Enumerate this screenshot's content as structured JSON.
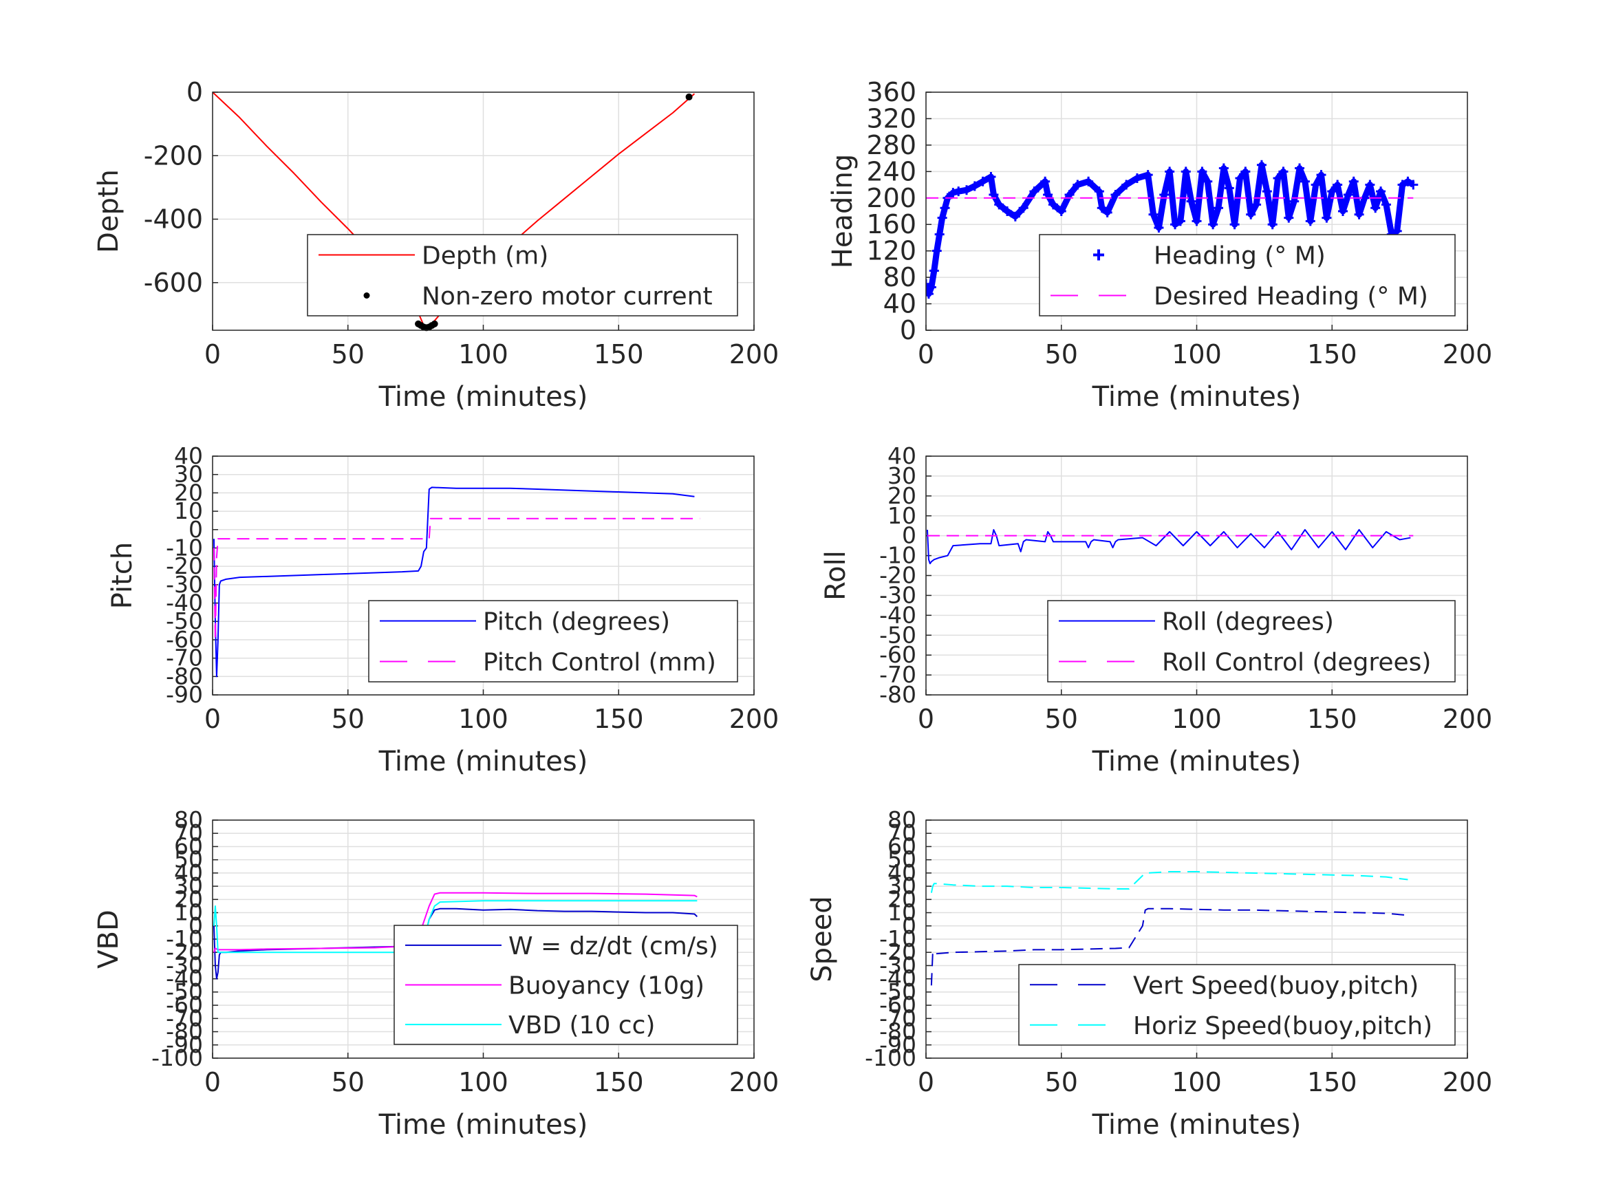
{
  "chart_data": [
    {
      "id": "depth",
      "type": "line",
      "xlabel": "Time (minutes)",
      "ylabel": "Depth",
      "xlim": [
        0,
        200
      ],
      "ylim": [
        -750,
        0
      ],
      "xticks": [
        "0",
        "50",
        "100",
        "150",
        "200"
      ],
      "yticks": [
        "0",
        "-200",
        "-400",
        "-600"
      ],
      "grid": true,
      "legend_position": "bottom-right",
      "series": [
        {
          "name": "Depth (m)",
          "color": "#ff0000",
          "style": "solid",
          "x": [
            0,
            10,
            20,
            30,
            40,
            50,
            60,
            70,
            75,
            78,
            80,
            85,
            90,
            100,
            110,
            120,
            130,
            140,
            150,
            160,
            170,
            176,
            178
          ],
          "y": [
            0,
            -80,
            -170,
            -255,
            -345,
            -430,
            -520,
            -615,
            -675,
            -735,
            -740,
            -690,
            -635,
            -555,
            -480,
            -405,
            -335,
            -265,
            -195,
            -130,
            -65,
            -20,
            -5
          ]
        },
        {
          "name": "Non-zero motor current",
          "color": "#000000",
          "style": "dots",
          "x": [
            76,
            77,
            78,
            79,
            80,
            81,
            82,
            176
          ],
          "y": [
            -730,
            -735,
            -740,
            -742,
            -740,
            -735,
            -730,
            -15
          ]
        }
      ]
    },
    {
      "id": "heading",
      "type": "line",
      "xlabel": "Time (minutes)",
      "ylabel": "Heading",
      "xlim": [
        0,
        200
      ],
      "ylim": [
        0,
        360
      ],
      "xticks": [
        "0",
        "50",
        "100",
        "150",
        "200"
      ],
      "yticks": [
        "0",
        "40",
        "80",
        "120",
        "160",
        "200",
        "240",
        "280",
        "320",
        "360"
      ],
      "grid": true,
      "legend_position": "bottom-right",
      "series": [
        {
          "name": "Heading (° M)",
          "color": "#0000ff",
          "style": "plus",
          "x": [
            0,
            1,
            2,
            3,
            4,
            5,
            6,
            7,
            8,
            10,
            12,
            15,
            18,
            21,
            24,
            25,
            27,
            30,
            33,
            36,
            40,
            44,
            45,
            47,
            50,
            53,
            56,
            60,
            64,
            65,
            67,
            70,
            74,
            78,
            82,
            84,
            86,
            88,
            90,
            92,
            94,
            96,
            98,
            100,
            102,
            104,
            106,
            108,
            110,
            112,
            114,
            116,
            118,
            120,
            122,
            124,
            126,
            128,
            130,
            132,
            134,
            136,
            138,
            140,
            142,
            144,
            146,
            148,
            150,
            152,
            154,
            156,
            158,
            160,
            162,
            164,
            166,
            168,
            170,
            172,
            174,
            176,
            178,
            180
          ],
          "y": [
            70,
            55,
            65,
            90,
            120,
            145,
            170,
            185,
            200,
            208,
            210,
            212,
            218,
            225,
            232,
            205,
            190,
            180,
            172,
            185,
            210,
            225,
            205,
            190,
            180,
            205,
            220,
            225,
            210,
            185,
            178,
            205,
            220,
            230,
            235,
            175,
            155,
            205,
            240,
            160,
            165,
            240,
            195,
            165,
            240,
            225,
            160,
            185,
            245,
            215,
            160,
            230,
            240,
            175,
            190,
            250,
            210,
            160,
            230,
            240,
            170,
            195,
            245,
            225,
            165,
            220,
            235,
            170,
            210,
            220,
            180,
            205,
            225,
            175,
            200,
            220,
            185,
            210,
            190,
            145,
            150,
            220,
            225,
            220
          ]
        },
        {
          "name": "Desired Heading (° M)",
          "color": "#ff00ff",
          "style": "dashed",
          "x": [
            0,
            180
          ],
          "y": [
            200,
            200
          ]
        }
      ]
    },
    {
      "id": "pitch",
      "type": "line",
      "xlabel": "Time (minutes)",
      "ylabel": "Pitch",
      "xlim": [
        0,
        200
      ],
      "ylim": [
        -90,
        40
      ],
      "xticks": [
        "0",
        "50",
        "100",
        "150",
        "200"
      ],
      "yticks": [
        "-90",
        "-80",
        "-70",
        "-60",
        "-50",
        "-40",
        "-30",
        "-20",
        "-10",
        "0",
        "10",
        "20",
        "30",
        "40"
      ],
      "grid": true,
      "legend_position": "bottom-right",
      "series": [
        {
          "name": "Pitch (degrees)",
          "color": "#0000ff",
          "style": "solid",
          "x": [
            0.5,
            1,
            1.5,
            2,
            2.5,
            3,
            5,
            10,
            20,
            30,
            40,
            50,
            60,
            70,
            76,
            77,
            78,
            79,
            80,
            81,
            90,
            100,
            110,
            120,
            130,
            140,
            150,
            160,
            170,
            178
          ],
          "y": [
            -5,
            -50,
            -80,
            -60,
            -30,
            -28,
            -27,
            -26,
            -25.5,
            -25,
            -24.5,
            -24,
            -23.5,
            -23,
            -22.5,
            -20,
            -12,
            -10,
            22,
            23,
            22.5,
            22.5,
            22.5,
            22,
            21.5,
            21,
            20.5,
            20,
            19.5,
            18
          ]
        },
        {
          "name": "Pitch Control (mm)",
          "color": "#ff00ff",
          "style": "dashed",
          "x": [
            0.5,
            1,
            1.5,
            2,
            2.5,
            80,
            80.5,
            180
          ],
          "y": [
            -10,
            -60,
            -15,
            -5,
            -5,
            -5,
            6,
            6
          ]
        }
      ]
    },
    {
      "id": "roll",
      "type": "line",
      "xlabel": "Time (minutes)",
      "ylabel": "Roll",
      "xlim": [
        0,
        200
      ],
      "ylim": [
        -80,
        40
      ],
      "xticks": [
        "0",
        "50",
        "100",
        "150",
        "200"
      ],
      "yticks": [
        "-80",
        "-70",
        "-60",
        "-50",
        "-40",
        "-30",
        "-20",
        "-10",
        "0",
        "10",
        "20",
        "30",
        "40"
      ],
      "grid": true,
      "legend_position": "bottom-right",
      "series": [
        {
          "name": "Roll (degrees)",
          "color": "#0000ff",
          "style": "solid",
          "x": [
            0.5,
            1,
            1.5,
            2,
            3,
            5,
            8,
            10,
            20,
            24,
            25,
            26,
            27,
            34,
            35,
            36,
            37,
            44,
            45,
            46,
            47,
            59,
            60,
            61,
            62,
            68,
            69,
            70,
            71,
            80,
            85,
            90,
            95,
            100,
            105,
            110,
            115,
            120,
            125,
            130,
            135,
            140,
            145,
            150,
            155,
            160,
            165,
            170,
            175,
            179
          ],
          "y": [
            3,
            -12,
            -14,
            -13,
            -12,
            -11,
            -10,
            -5,
            -4,
            -4,
            3,
            0,
            -5,
            -4,
            -8,
            -3,
            -2,
            -3,
            2,
            0,
            -3,
            -3,
            -6,
            -3,
            -2,
            -3,
            -6,
            -3,
            -2,
            -1,
            -5,
            2,
            -5,
            2,
            -5,
            2,
            -6,
            1,
            -6,
            2,
            -7,
            3,
            -6,
            2,
            -7,
            3,
            -6,
            2,
            -2,
            -1
          ]
        },
        {
          "name": "Roll Control (degrees)",
          "color": "#ff00ff",
          "style": "dashed",
          "x": [
            0.5,
            180
          ],
          "y": [
            0,
            0
          ]
        }
      ]
    },
    {
      "id": "vbd",
      "type": "line",
      "xlabel": "Time (minutes)",
      "ylabel": "VBD",
      "xlim": [
        0,
        200
      ],
      "ylim": [
        -100,
        80
      ],
      "xticks": [
        "0",
        "50",
        "100",
        "150",
        "200"
      ],
      "yticks": [
        "-100",
        "-90",
        "-80",
        "-70",
        "-60",
        "-50",
        "-40",
        "-30",
        "-20",
        "-10",
        "0",
        "10",
        "20",
        "30",
        "40",
        "50",
        "60",
        "70",
        "80"
      ],
      "grid": true,
      "legend_position": "bottom-right",
      "series": [
        {
          "name": "W = dz/dt (cm/s)",
          "color": "#0000cc",
          "style": "solid",
          "x": [
            0.5,
            1,
            1.5,
            2,
            2.5,
            3,
            5,
            10,
            20,
            30,
            40,
            50,
            60,
            70,
            75,
            78,
            80,
            82,
            84,
            90,
            100,
            110,
            120,
            130,
            140,
            150,
            160,
            170,
            178,
            179
          ],
          "y": [
            0,
            -30,
            -40,
            -35,
            -22,
            -20,
            -20,
            -19,
            -18,
            -17.5,
            -17,
            -16.5,
            -16,
            -15.5,
            -15,
            -12,
            5,
            12,
            13,
            13,
            12,
            12.5,
            11.5,
            11,
            11,
            10.5,
            10,
            10,
            9,
            7
          ]
        },
        {
          "name": "Buoyancy (10g)",
          "color": "#ff00ff",
          "style": "solid",
          "x": [
            0.5,
            1,
            2,
            3,
            10,
            20,
            40,
            60,
            75,
            80,
            82,
            84,
            100,
            120,
            140,
            160,
            178,
            179
          ],
          "y": [
            -20,
            -17,
            -18,
            -18,
            -18,
            -17.5,
            -17,
            -16.5,
            -15,
            15,
            24,
            25,
            25,
            24.5,
            24.5,
            24,
            23,
            22
          ]
        },
        {
          "name": "VBD (10 cc)",
          "color": "#00ffff",
          "style": "solid",
          "x": [
            0.5,
            1,
            1.5,
            2,
            3,
            76,
            78,
            80,
            82,
            84,
            100,
            120,
            140,
            160,
            178,
            179
          ],
          "y": [
            0,
            15,
            0,
            -20,
            -20,
            -20,
            -12,
            5,
            15,
            18,
            19,
            19,
            19,
            19,
            19,
            19
          ]
        }
      ]
    },
    {
      "id": "speed",
      "type": "line",
      "xlabel": "Time (minutes)",
      "ylabel": "Speed",
      "xlim": [
        0,
        200
      ],
      "ylim": [
        -100,
        80
      ],
      "xticks": [
        "0",
        "50",
        "100",
        "150",
        "200"
      ],
      "yticks": [
        "-100",
        "-90",
        "-80",
        "-70",
        "-60",
        "-50",
        "-40",
        "-30",
        "-20",
        "-10",
        "0",
        "10",
        "20",
        "30",
        "40",
        "50",
        "60",
        "70",
        "80"
      ],
      "grid": true,
      "legend_position": "bottom-right",
      "series": [
        {
          "name": "Vert Speed(buoy,pitch)",
          "color": "#0000cc",
          "style": "dashed",
          "x": [
            2,
            2.5,
            3,
            4,
            10,
            20,
            30,
            40,
            50,
            60,
            70,
            75,
            80,
            81,
            82,
            90,
            100,
            110,
            120,
            130,
            140,
            150,
            160,
            170,
            178
          ],
          "y": [
            -45,
            -20,
            -22,
            -21,
            -20,
            -19.5,
            -19,
            -18,
            -18,
            -17.5,
            -17,
            -16.5,
            0,
            12,
            13,
            13,
            12.5,
            12,
            12,
            11.5,
            11,
            10.5,
            10,
            9.5,
            8
          ]
        },
        {
          "name": "Horiz Speed(buoy,pitch)",
          "color": "#00ffff",
          "style": "dashed",
          "x": [
            2,
            2.5,
            3,
            4,
            10,
            20,
            30,
            40,
            50,
            60,
            70,
            75,
            80,
            81,
            82,
            90,
            100,
            110,
            120,
            130,
            140,
            150,
            160,
            170,
            178
          ],
          "y": [
            25,
            30,
            32,
            32,
            31,
            30,
            30,
            29,
            29,
            28.5,
            28,
            28,
            38,
            40,
            40,
            41,
            41,
            40.5,
            40,
            39.5,
            39,
            38.5,
            38,
            37,
            35
          ]
        }
      ]
    }
  ]
}
